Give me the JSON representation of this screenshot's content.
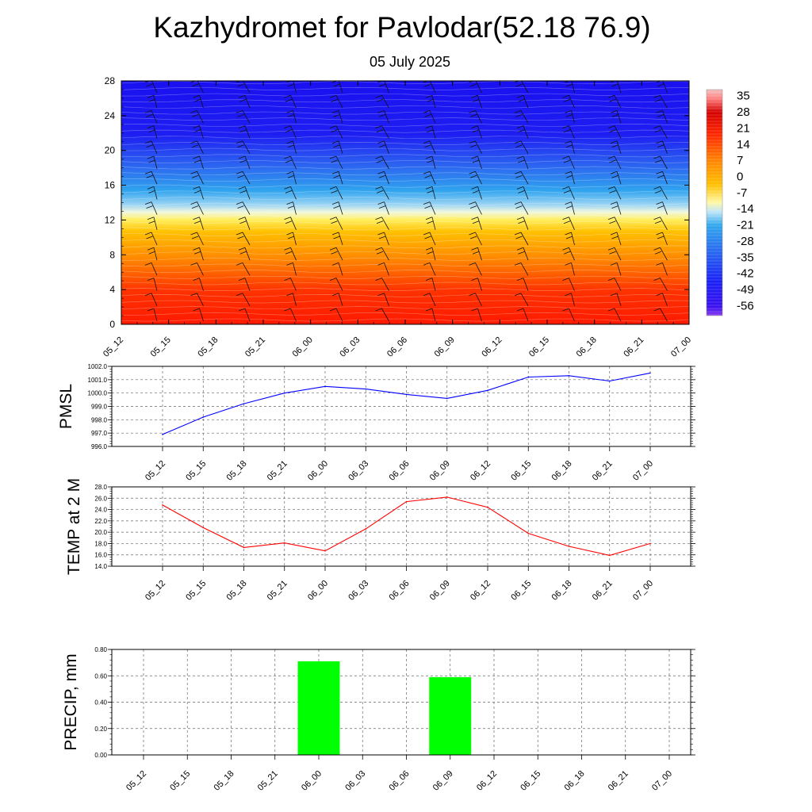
{
  "title": "Kazhydromet for Pavlodar(52.18 76.9)",
  "subtitle": "05 July 2025",
  "colors": {
    "pmsl_line": "#0000ff",
    "temp_line": "#ff0000",
    "precip_bar": "#00ff00"
  },
  "chart_data": [
    {
      "type": "heatmap",
      "name": "vertical cross-section",
      "x_ticks": [
        "05_12",
        "05_15",
        "05_18",
        "05_21",
        "06_00",
        "06_03",
        "06_06",
        "06_09",
        "06_12",
        "06_15",
        "06_18",
        "06_21",
        "07_00"
      ],
      "y_ticks": [
        "0",
        "4",
        "8",
        "12",
        "16",
        "20",
        "24",
        "28"
      ],
      "ylim": [
        0,
        28
      ],
      "colorbar_labels": [
        "35",
        "28",
        "21",
        "14",
        "7",
        "0",
        "-7",
        "-14",
        "-21",
        "-28",
        "-35",
        "-42",
        "-49",
        "-56"
      ],
      "colorbar_range": [
        -60,
        38
      ],
      "freezing_level_km": 13,
      "wind_barbs": true
    },
    {
      "type": "line",
      "ylabel": "PMSL",
      "categories": [
        "05_12",
        "05_15",
        "05_18",
        "05_21",
        "06_00",
        "06_03",
        "06_06",
        "06_09",
        "06_12",
        "06_15",
        "06_18",
        "06_21",
        "07_00"
      ],
      "values": [
        996.9,
        998.2,
        999.2,
        1000.0,
        1000.5,
        1000.3,
        999.9,
        999.6,
        1000.2,
        1001.2,
        1001.3,
        1000.9,
        1001.5
      ],
      "y_ticks": [
        "996.0",
        "997.0",
        "998.0",
        "999.0",
        "1000.0",
        "1001.0",
        "1002.0"
      ],
      "ylim": [
        996,
        1002
      ],
      "grid": true
    },
    {
      "type": "line",
      "ylabel": "TEMP at 2 M",
      "categories": [
        "05_12",
        "05_15",
        "05_18",
        "05_21",
        "06_00",
        "06_03",
        "06_06",
        "06_09",
        "06_12",
        "06_15",
        "06_18",
        "06_21",
        "07_00"
      ],
      "values": [
        24.8,
        20.8,
        17.3,
        18.1,
        16.7,
        20.6,
        25.4,
        26.2,
        24.4,
        19.8,
        17.5,
        15.9,
        18.0
      ],
      "y_ticks": [
        "14.0",
        "16.0",
        "18.0",
        "20.0",
        "22.0",
        "24.0",
        "26.0",
        "28.0"
      ],
      "ylim": [
        14,
        28
      ],
      "grid": true
    },
    {
      "type": "bar",
      "ylabel": "PRECIP, mm",
      "categories": [
        "05_12",
        "05_15",
        "05_18",
        "05_21",
        "06_00",
        "06_03",
        "06_06",
        "06_09",
        "06_12",
        "06_15",
        "06_18",
        "06_21",
        "07_00"
      ],
      "values": [
        0,
        0,
        0,
        0,
        0.71,
        0,
        0,
        0.59,
        0,
        0,
        0,
        0,
        0
      ],
      "y_ticks": [
        "0.00",
        "0.20",
        "0.40",
        "0.60",
        "0.80"
      ],
      "ylim": [
        0,
        0.8
      ],
      "grid": true
    }
  ]
}
